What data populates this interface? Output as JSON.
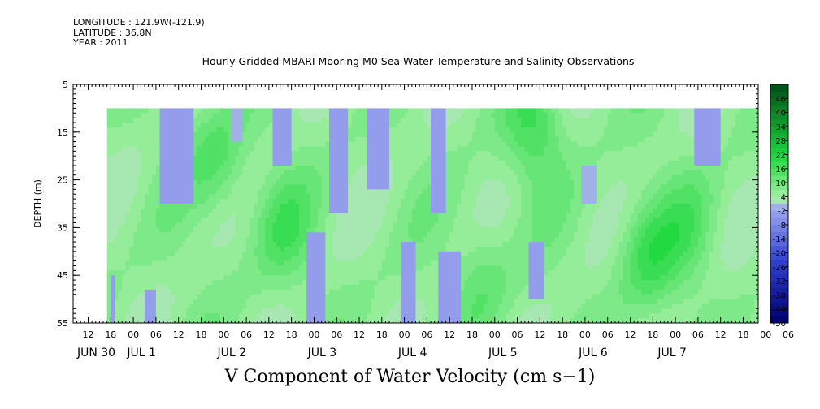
{
  "header": {
    "longitude": "LONGITUDE : 121.9W(-121.9)",
    "latitude": "LATITUDE : 36.8N",
    "year": "YEAR : 2011"
  },
  "chart_data": {
    "type": "heatmap",
    "title": "Hourly Gridded MBARI Mooring M0 Sea Water Temperature and Salinity Observations",
    "variable_label": "V Component of Water Velocity (cm s−1)",
    "ylabel": "DEPTH (m)",
    "y_ticks": [
      "5",
      "15",
      "25",
      "35",
      "45",
      "55"
    ],
    "ylim": [
      5,
      55
    ],
    "y_data_range": [
      10,
      55
    ],
    "y_inverted": true,
    "x_hour_labels": [
      "12",
      "18",
      "00",
      "06",
      "12",
      "18",
      "00",
      "06",
      "12",
      "18",
      "00",
      "06",
      "12",
      "18",
      "00",
      "06",
      "12",
      "18",
      "00",
      "06",
      "12",
      "18",
      "00",
      "06",
      "12",
      "18",
      "00",
      "06",
      "12",
      "18",
      "00",
      "06"
    ],
    "x_date_labels": [
      "JUN 30",
      "JUL 1",
      "JUL 2",
      "JUL 3",
      "JUL 4",
      "JUL 5",
      "JUL 6",
      "JUL 7"
    ],
    "x_range_hours": [
      "2011-06-30 08:00",
      "2011-07-07 22:00"
    ],
    "data_start": "2011-06-30 17:00",
    "colorbar": {
      "labels": [
        "46",
        "40",
        "34",
        "28",
        "22",
        "16",
        "10",
        "4",
        "-2",
        "-8",
        "-14",
        "-20",
        "-26",
        "-32",
        "-38",
        "-44",
        "-50"
      ],
      "min": -50,
      "max": 52,
      "step": 3,
      "colors": {
        "strong_positive": "#00551a",
        "positive": "#20d940",
        "weak_positive": "#a8f0a8",
        "weak_negative": "#a0a8f0",
        "negative": "#3040d0",
        "strong_negative": "#000070"
      }
    },
    "negative_bands": [
      {
        "start": "2011-06-30 18:00",
        "end": "2011-06-30 19:00",
        "depth_range": [
          45,
          55
        ],
        "approx_value": -4
      },
      {
        "start": "2011-07-01 03:00",
        "end": "2011-07-01 06:00",
        "depth_range": [
          48,
          55
        ],
        "approx_value": -3
      },
      {
        "start": "2011-07-01 07:00",
        "end": "2011-07-01 16:00",
        "depth_range": [
          10,
          30
        ],
        "approx_value": -5
      },
      {
        "start": "2011-07-02 02:00",
        "end": "2011-07-02 05:00",
        "depth_range": [
          10,
          17
        ],
        "approx_value": -2
      },
      {
        "start": "2011-07-02 13:00",
        "end": "2011-07-02 18:00",
        "depth_range": [
          10,
          22
        ],
        "approx_value": -3
      },
      {
        "start": "2011-07-02 22:00",
        "end": "2011-07-03 03:00",
        "depth_range": [
          36,
          55
        ],
        "approx_value": -4
      },
      {
        "start": "2011-07-03 04:00",
        "end": "2011-07-03 09:00",
        "depth_range": [
          10,
          32
        ],
        "approx_value": -5
      },
      {
        "start": "2011-07-03 14:00",
        "end": "2011-07-03 20:00",
        "depth_range": [
          10,
          27
        ],
        "approx_value": -3
      },
      {
        "start": "2011-07-03 23:00",
        "end": "2011-07-04 03:00",
        "depth_range": [
          38,
          55
        ],
        "approx_value": -4
      },
      {
        "start": "2011-07-04 07:00",
        "end": "2011-07-04 11:00",
        "depth_range": [
          10,
          32
        ],
        "approx_value": -5
      },
      {
        "start": "2011-07-04 09:00",
        "end": "2011-07-04 15:00",
        "depth_range": [
          40,
          55
        ],
        "approx_value": -5
      },
      {
        "start": "2011-07-05 09:00",
        "end": "2011-07-05 13:00",
        "depth_range": [
          38,
          50
        ],
        "approx_value": -3
      },
      {
        "start": "2011-07-05 23:00",
        "end": "2011-07-06 03:00",
        "depth_range": [
          22,
          30
        ],
        "approx_value": -2
      },
      {
        "start": "2011-07-07 05:00",
        "end": "2011-07-07 12:00",
        "depth_range": [
          10,
          22
        ],
        "approx_value": -3
      }
    ],
    "strong_positive_cores": [
      {
        "time": "2011-07-01 22:00",
        "depth": 20,
        "approx_value": 14
      },
      {
        "time": "2011-07-02 15:00",
        "depth": 35,
        "approx_value": 14
      },
      {
        "time": "2011-07-04 20:00",
        "depth": 45,
        "approx_value": 12
      },
      {
        "time": "2011-07-05 10:00",
        "depth": 14,
        "approx_value": 16
      },
      {
        "time": "2011-07-06 16:00",
        "depth": 40,
        "approx_value": 16
      },
      {
        "time": "2011-07-07 03:00",
        "depth": 35,
        "approx_value": 12
      }
    ],
    "grid": false,
    "legend_position": "right"
  }
}
